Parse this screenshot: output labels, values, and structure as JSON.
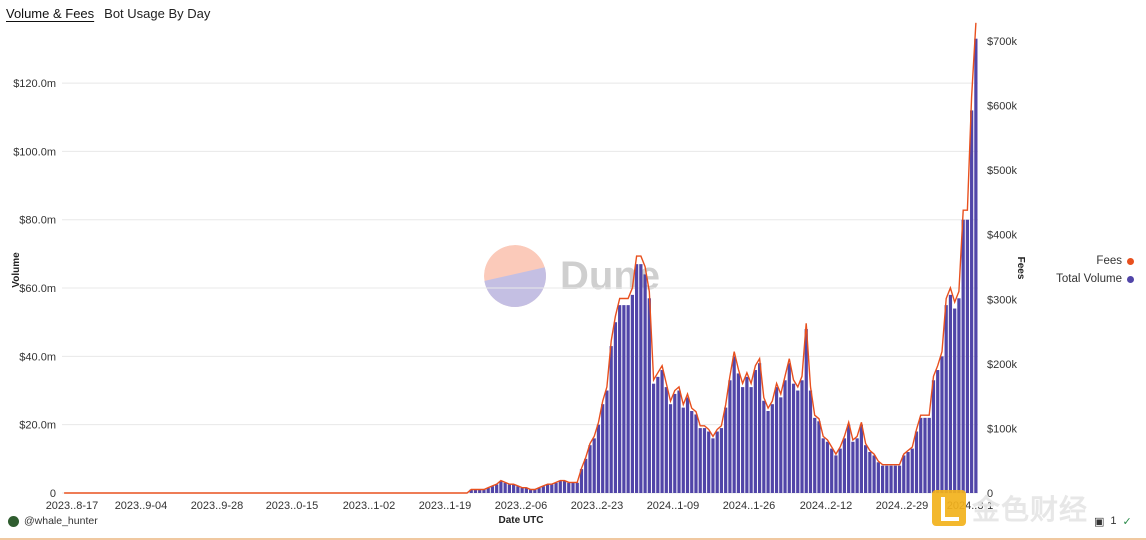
{
  "tabs": [
    {
      "label": "Volume & Fees",
      "active": true
    },
    {
      "label": "Bot Usage By Day",
      "active": false
    }
  ],
  "footer": {
    "author": "@whale_hunter"
  },
  "watermark": {
    "text": "Dune"
  },
  "corner_brand": {
    "text": "金色财经"
  },
  "corner_badge": "1",
  "colors": {
    "fees": "#e8501e",
    "volume": "#5145a8",
    "grid": "#e8e8e8"
  },
  "chart_data": {
    "type": "bar",
    "xlabel": "Date UTC",
    "ylabel": "Volume",
    "y2label": "Fees",
    "ylim": [
      0,
      133.2
    ],
    "y_unit": "m",
    "y_ticks": [
      "0",
      "$20.0m",
      "$40.0m",
      "$60.0m",
      "$80.0m",
      "$100.0m",
      "$120.0m"
    ],
    "y2lim": [
      0,
      700
    ],
    "y2_ticks": [
      "0",
      "$100k",
      "$200k",
      "$300k",
      "$400k",
      "$500k",
      "$600k",
      "$700k"
    ],
    "x_ticks": [
      "2023..8-17",
      "2023..9-04",
      "2023..9-28",
      "2023..0-15",
      "2023..1-02",
      "2023..1-19",
      "2023..2-06",
      "2023..2-23",
      "2024..1-09",
      "2024..1-26",
      "2024..2-12",
      "2024..2-29",
      "2024..3-1"
    ],
    "x_start": "2023-08-17",
    "legend": [
      {
        "name": "Fees",
        "type": "line"
      },
      {
        "name": "Total Volume",
        "type": "bar"
      }
    ],
    "legend_position": "right",
    "grid": true,
    "volume_m": [
      0,
      0,
      0,
      0,
      0,
      0,
      0,
      0,
      0,
      0,
      0,
      0,
      0,
      0,
      0,
      0,
      0,
      0,
      0,
      0,
      0,
      0,
      0,
      0,
      0,
      0,
      0,
      0,
      0,
      0,
      0,
      0,
      0,
      0,
      0,
      0,
      0,
      0,
      0,
      0,
      0,
      0,
      0,
      0,
      0,
      0,
      0,
      0,
      0,
      0,
      0,
      0,
      0,
      0,
      0,
      0,
      0,
      0,
      0,
      0,
      0,
      0,
      0,
      0,
      0,
      0,
      0,
      0,
      0,
      0,
      0,
      0,
      0,
      0,
      0,
      0,
      0,
      0,
      0,
      0,
      0,
      0,
      0,
      0,
      0,
      0,
      0,
      0,
      0,
      0,
      0,
      0,
      0,
      0,
      0,
      0,
      1.0,
      1.0,
      1.0,
      1.0,
      1.5,
      2.0,
      2.5,
      3.5,
      3.0,
      2.5,
      2.5,
      2.0,
      1.5,
      1.5,
      1.0,
      1.0,
      1.5,
      2.0,
      2.5,
      2.5,
      3.0,
      3.5,
      3.5,
      3.0,
      3.0,
      3.0,
      7,
      10,
      14,
      16,
      20,
      26,
      30,
      43,
      50,
      55,
      55,
      55,
      58,
      67,
      67,
      64,
      57,
      32,
      34,
      36,
      31,
      26,
      29,
      30,
      25,
      28,
      24,
      23,
      19,
      19,
      18,
      16,
      18,
      19,
      25,
      33,
      40,
      35,
      31,
      34,
      31,
      36,
      38,
      27,
      24,
      26,
      31,
      28,
      33,
      38,
      32,
      30,
      33,
      48,
      30,
      22,
      21,
      16,
      15,
      13,
      11,
      13,
      16,
      20,
      15,
      16,
      20,
      14,
      12,
      11,
      9,
      8,
      8,
      8,
      8,
      8,
      11,
      12,
      13,
      18,
      22,
      22,
      22,
      33,
      36,
      40,
      55,
      58,
      54,
      57,
      80,
      80,
      112,
      133
    ]
  }
}
